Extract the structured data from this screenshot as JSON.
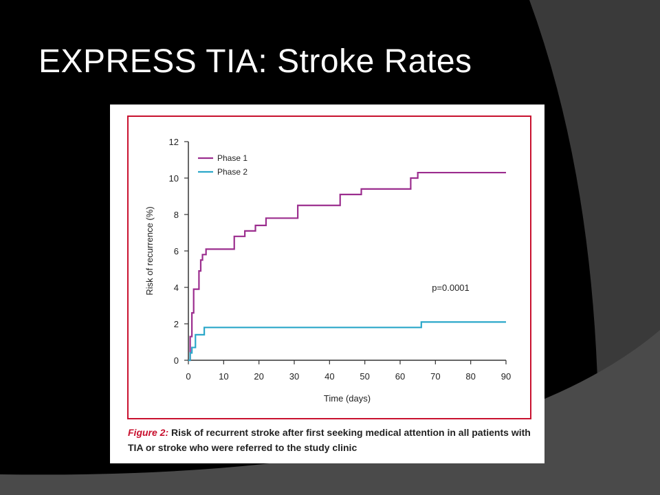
{
  "slide": {
    "title": "EXPRESS TIA: Stroke Rates",
    "background_color": "#000000",
    "accent_gray": "#3a3a3a"
  },
  "figure": {
    "border_color": "#c8102e",
    "caption_label": "Figure 2:",
    "caption_text": " Risk of recurrent stroke after first seeking medical attention in all patients with TIA or stroke who were referred to the study clinic"
  },
  "chart_data": {
    "type": "line",
    "step": true,
    "title": "",
    "xlabel": "Time (days)",
    "ylabel": "Risk of recurrence (%)",
    "xlim": [
      0,
      90
    ],
    "ylim": [
      0,
      12
    ],
    "xticks": [
      0,
      10,
      20,
      30,
      40,
      50,
      60,
      70,
      80,
      90
    ],
    "yticks": [
      0,
      2,
      4,
      6,
      8,
      10,
      12
    ],
    "grid": false,
    "legend_position": "top-left",
    "annotation": "p=0.0001",
    "series": [
      {
        "name": "Phase 1",
        "color": "#9b2d8e",
        "x": [
          0,
          0.5,
          1,
          1.5,
          2,
          3,
          3.5,
          4,
          5,
          13,
          16,
          19,
          22,
          31,
          43,
          49,
          63,
          65,
          90
        ],
        "y": [
          0,
          1.3,
          2.6,
          3.9,
          3.9,
          4.9,
          5.5,
          5.8,
          6.1,
          6.8,
          7.1,
          7.4,
          7.8,
          8.5,
          9.1,
          9.4,
          10.0,
          10.3,
          10.3
        ]
      },
      {
        "name": "Phase 2",
        "color": "#2aa7c9",
        "x": [
          0,
          0.5,
          1,
          2,
          4.5,
          66,
          90
        ],
        "y": [
          0,
          0.4,
          0.7,
          1.4,
          1.8,
          2.1,
          2.1
        ]
      }
    ]
  }
}
